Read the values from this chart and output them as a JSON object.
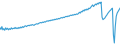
{
  "values": [
    52,
    48,
    55,
    47,
    50,
    46,
    52,
    48,
    51,
    47,
    50,
    48,
    52,
    49,
    51,
    50,
    53,
    50,
    52,
    50,
    53,
    51,
    54,
    52,
    55,
    53,
    56,
    57,
    55,
    57,
    58,
    57,
    59,
    58,
    60,
    59,
    58,
    60,
    61,
    62,
    61,
    63,
    64,
    65,
    64,
    66,
    65,
    67,
    66,
    68,
    69,
    68,
    70,
    69,
    71,
    70,
    72,
    71,
    73,
    72,
    74,
    73,
    75,
    74,
    76,
    77,
    76,
    78,
    77,
    79,
    80,
    79,
    81,
    80,
    82,
    83,
    82,
    84,
    83,
    85,
    84,
    86,
    85,
    87,
    90,
    88,
    92,
    91,
    95,
    93,
    97,
    95,
    98,
    96,
    100,
    99,
    102,
    105,
    108,
    104,
    107,
    110,
    108,
    112,
    110,
    114,
    112,
    115,
    78,
    72,
    74,
    76,
    80,
    83,
    87,
    90,
    93,
    95,
    98,
    100,
    35,
    15,
    55,
    80,
    88,
    92,
    96,
    100
  ],
  "line_color": "#3a9fd4",
  "background_color": "#ffffff",
  "linewidth": 0.8
}
